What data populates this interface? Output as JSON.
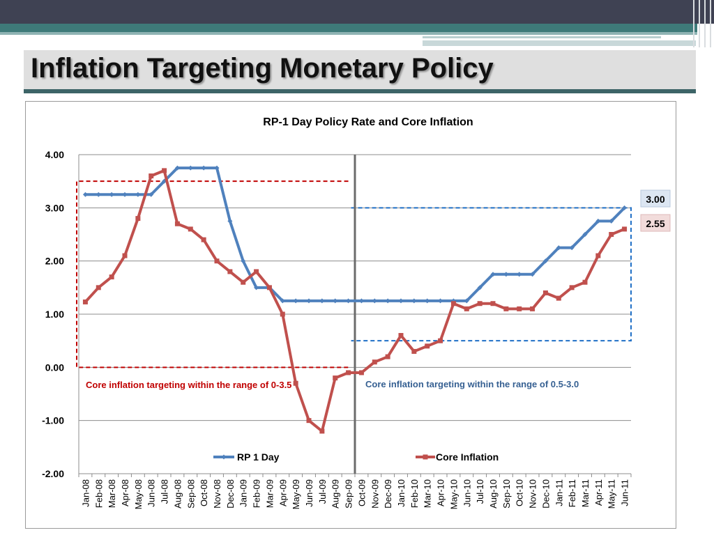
{
  "slide": {
    "title": "Inflation Targeting Monetary Policy",
    "colors": {
      "topbar": "#3f4253",
      "teal": "#3e7a79",
      "teal_light": "#8fb3b3",
      "title_bg": "#dfdfdf",
      "title_underline": "#3d6467"
    }
  },
  "chart_data": {
    "type": "line",
    "title": "RP-1 Day Policy Rate and Core Inflation",
    "ylim": [
      -2,
      4
    ],
    "yticks": [
      "4.00",
      "3.00",
      "2.00",
      "1.00",
      "0.00",
      "-1.00",
      "-2.00"
    ],
    "ytick_values": [
      4,
      3,
      2,
      1,
      0,
      -1,
      -2
    ],
    "grid": true,
    "categories": [
      "Jan-08",
      "Feb-08",
      "Mar-08",
      "Apr-08",
      "May-08",
      "Jun-08",
      "Jul-08",
      "Aug-08",
      "Sep-08",
      "Oct-08",
      "Nov-08",
      "Dec-08",
      "Jan-09",
      "Feb-09",
      "Mar-09",
      "Apr-09",
      "May-09",
      "Jun-09",
      "Jul-09",
      "Aug-09",
      "Sep-09",
      "Oct-09",
      "Nov-09",
      "Dec-09",
      "Jan-10",
      "Feb-10",
      "Mar-10",
      "Apr-10",
      "May-10",
      "Jun-10",
      "Jul-10",
      "Aug-10",
      "Sep-10",
      "Oct-10",
      "Nov-10",
      "Dec-10",
      "Jan-11",
      "Feb-11",
      "Mar-11",
      "Apr-11",
      "May-11",
      "Jun-11"
    ],
    "series": [
      {
        "name": "RP 1 Day",
        "color": "#4f81bd",
        "values": [
          3.25,
          3.25,
          3.25,
          3.25,
          3.25,
          3.25,
          3.5,
          3.75,
          3.75,
          3.75,
          3.75,
          2.75,
          2.0,
          1.5,
          1.5,
          1.25,
          1.25,
          1.25,
          1.25,
          1.25,
          1.25,
          1.25,
          1.25,
          1.25,
          1.25,
          1.25,
          1.25,
          1.25,
          1.25,
          1.25,
          1.5,
          1.75,
          1.75,
          1.75,
          1.75,
          2.0,
          2.25,
          2.25,
          2.5,
          2.75,
          2.75,
          3.0
        ]
      },
      {
        "name": "Core Inflation",
        "color": "#c0504d",
        "values": [
          1.23,
          1.5,
          1.7,
          2.1,
          2.8,
          3.6,
          3.7,
          2.7,
          2.6,
          2.4,
          2.0,
          1.8,
          1.6,
          1.8,
          1.5,
          1.0,
          -0.3,
          -1.0,
          -1.2,
          -0.2,
          -0.1,
          -0.1,
          0.1,
          0.2,
          0.6,
          0.3,
          0.4,
          0.5,
          1.2,
          1.1,
          1.2,
          1.2,
          1.1,
          1.1,
          1.1,
          1.4,
          1.3,
          1.5,
          1.6,
          2.1,
          2.5,
          2.6
        ]
      }
    ],
    "legend": {
      "placement": "bottom-inside"
    },
    "divider_after": "Sep-09",
    "regions": [
      {
        "label": "Core inflation targeting within the range of 0-3.5",
        "range": [
          0,
          3.5
        ],
        "from": "Jan-08",
        "to": "Sep-09",
        "color": "#c00000"
      },
      {
        "label": "Core inflation targeting within the range of 0.5-3.0",
        "range": [
          0.5,
          3.0
        ],
        "from": "Sep-09",
        "to": "Jun-11",
        "color": "#1f6fc6"
      }
    ],
    "end_labels": [
      {
        "text": "3.00",
        "bg": "#dce6f2"
      },
      {
        "text": "2.55",
        "bg": "#f2dcdb"
      }
    ]
  }
}
